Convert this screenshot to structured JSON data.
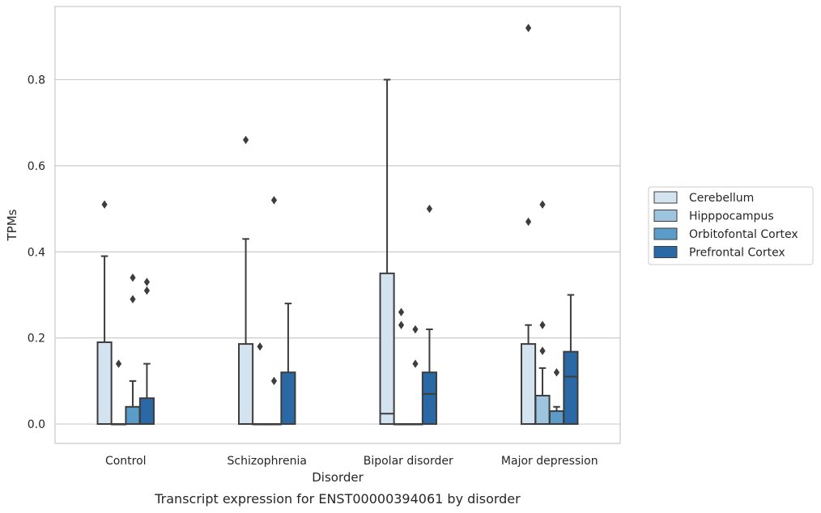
{
  "chart_data": {
    "type": "box",
    "caption": "Transcript expression for ENST00000394061 by disorder",
    "xlabel": "Disorder",
    "ylabel": "TPMs",
    "ylim": [
      -0.045,
      0.97
    ],
    "yticks": [
      0.0,
      0.2,
      0.4,
      0.6,
      0.8
    ],
    "ytick_labels": [
      "0.0",
      "0.2",
      "0.4",
      "0.6",
      "0.8"
    ],
    "grid": true,
    "legend_position": "right",
    "categories": [
      "Control",
      "Schizophrenia",
      "Bipolar disorder",
      "Major depression"
    ],
    "series": [
      {
        "name": "Cerebellum",
        "color": "#d4e3f0",
        "boxes": [
          {
            "q1": 0.0,
            "median": 0.0,
            "q3": 0.19,
            "whisker_low": 0.0,
            "whisker_high": 0.39,
            "outliers": [
              0.51
            ]
          },
          {
            "q1": 0.0,
            "median": 0.0,
            "q3": 0.186,
            "whisker_low": 0.0,
            "whisker_high": 0.43,
            "outliers": [
              0.66
            ]
          },
          {
            "q1": 0.0,
            "median": 0.024,
            "q3": 0.35,
            "whisker_low": 0.0,
            "whisker_high": 0.8,
            "outliers": []
          },
          {
            "q1": 0.0,
            "median": 0.0,
            "q3": 0.186,
            "whisker_low": 0.0,
            "whisker_high": 0.23,
            "outliers": [
              0.47,
              0.92
            ]
          }
        ]
      },
      {
        "name": "Hipppocampus",
        "color": "#9dc5df",
        "boxes": [
          {
            "q1": 0.0,
            "median": 0.0,
            "q3": 0.0,
            "whisker_low": 0.0,
            "whisker_high": 0.0,
            "outliers": [
              0.14
            ]
          },
          {
            "q1": 0.0,
            "median": 0.0,
            "q3": 0.0,
            "whisker_low": 0.0,
            "whisker_high": 0.0,
            "outliers": [
              0.18
            ]
          },
          {
            "q1": 0.0,
            "median": 0.0,
            "q3": 0.0,
            "whisker_low": 0.0,
            "whisker_high": 0.0,
            "outliers": [
              0.23,
              0.26
            ]
          },
          {
            "q1": 0.0,
            "median": 0.0,
            "q3": 0.066,
            "whisker_low": 0.0,
            "whisker_high": 0.13,
            "outliers": [
              0.17,
              0.23,
              0.51
            ]
          }
        ]
      },
      {
        "name": "Orbitofontal Cortex",
        "color": "#5b9cc8",
        "boxes": [
          {
            "q1": 0.0,
            "median": 0.0,
            "q3": 0.04,
            "whisker_low": 0.0,
            "whisker_high": 0.1,
            "outliers": [
              0.29,
              0.34
            ]
          },
          {
            "q1": 0.0,
            "median": 0.0,
            "q3": 0.0,
            "whisker_low": 0.0,
            "whisker_high": 0.0,
            "outliers": [
              0.1,
              0.52
            ]
          },
          {
            "q1": 0.0,
            "median": 0.0,
            "q3": 0.0,
            "whisker_low": 0.0,
            "whisker_high": 0.0,
            "outliers": [
              0.14,
              0.22
            ]
          },
          {
            "q1": 0.0,
            "median": 0.0,
            "q3": 0.03,
            "whisker_low": 0.0,
            "whisker_high": 0.04,
            "outliers": [
              0.12
            ]
          }
        ]
      },
      {
        "name": "Prefrontal Cortex",
        "color": "#2b68a6",
        "boxes": [
          {
            "q1": 0.0,
            "median": 0.0,
            "q3": 0.06,
            "whisker_low": 0.0,
            "whisker_high": 0.14,
            "outliers": [
              0.31,
              0.33
            ]
          },
          {
            "q1": 0.0,
            "median": 0.0,
            "q3": 0.12,
            "whisker_low": 0.0,
            "whisker_high": 0.28,
            "outliers": []
          },
          {
            "q1": 0.0,
            "median": 0.07,
            "q3": 0.12,
            "whisker_low": 0.0,
            "whisker_high": 0.22,
            "outliers": [
              0.5
            ]
          },
          {
            "q1": 0.0,
            "median": 0.11,
            "q3": 0.168,
            "whisker_low": 0.0,
            "whisker_high": 0.3,
            "outliers": []
          }
        ]
      }
    ]
  }
}
